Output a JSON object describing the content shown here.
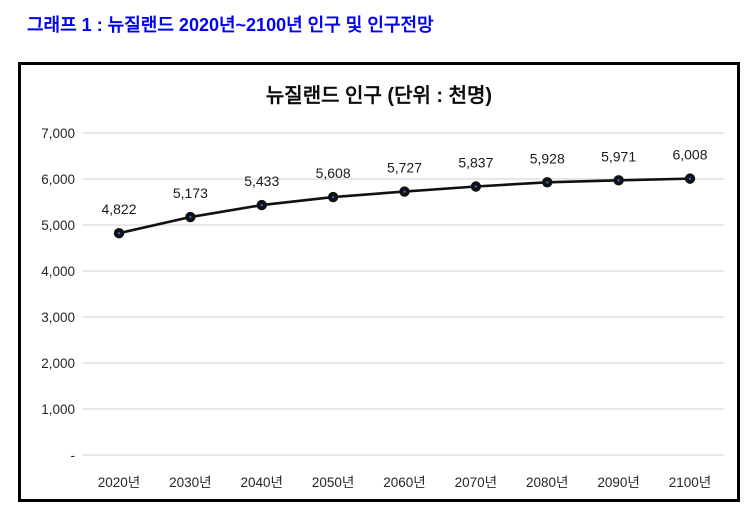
{
  "header": {
    "title": "그래프 1 : 뉴질랜드 2020년~2100년 인구 및 인구전망",
    "color": "#0202f2"
  },
  "chart": {
    "title": "뉴질랜드 인구 (단위 : 천명)",
    "border_color": "#000000",
    "gridline_color": "#d9d9d9",
    "line_color": "#111111",
    "marker_color": "#111111",
    "marker_center_color": "#2f5bc0",
    "axis_label_color": "#262626",
    "data_label_color": "#1a1a1a"
  },
  "chart_data": {
    "type": "line",
    "title": "뉴질랜드 인구 (단위 : 천명)",
    "categories": [
      "2020년",
      "2030년",
      "2040년",
      "2050년",
      "2060년",
      "2070년",
      "2080년",
      "2090년",
      "2100년"
    ],
    "series": [
      {
        "name": "뉴질랜드 인구",
        "values": [
          4822,
          5173,
          5433,
          5608,
          5727,
          5837,
          5928,
          5971,
          6008
        ],
        "data_labels": [
          "4,822",
          "5,173",
          "5,433",
          "5,608",
          "5,727",
          "5,837",
          "5,928",
          "5,971",
          "6,008"
        ]
      }
    ],
    "xlabel": "",
    "ylabel": "",
    "ylim": [
      0,
      7000
    ],
    "ytick_interval": 1000,
    "ytick_labels": [
      "-",
      "1,000",
      "2,000",
      "3,000",
      "4,000",
      "5,000",
      "6,000",
      "7,000"
    ],
    "grid": true,
    "legend_position": "none",
    "marker": "filled-circle"
  }
}
